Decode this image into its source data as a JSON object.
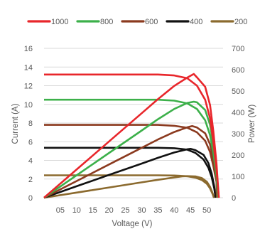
{
  "chart_data": {
    "type": "line",
    "title": "",
    "xlabel": "Voltage (V)",
    "ylabel": "Current (A)",
    "y2label": "Power (W)",
    "xlim": [
      0,
      55
    ],
    "ylim": [
      0,
      16
    ],
    "y2lim": [
      0,
      700
    ],
    "xticks": [
      "05",
      "10",
      "15",
      "20",
      "25",
      "30",
      "35",
      "40",
      "45",
      "50"
    ],
    "yticks": [
      0,
      2,
      4,
      6,
      8,
      10,
      12,
      14,
      16
    ],
    "y2ticks": [
      0,
      100,
      200,
      300,
      400,
      500,
      600,
      700
    ],
    "grid": "horizontal",
    "legend_position": "top",
    "series": [
      {
        "name": "1000",
        "color": "#e8262b",
        "current": [
          [
            0,
            13.2
          ],
          [
            35,
            13.2
          ],
          [
            40,
            13.1
          ],
          [
            44,
            12.8
          ],
          [
            47,
            12.0
          ],
          [
            49.5,
            10.5
          ],
          [
            51,
            8.5
          ],
          [
            52,
            6.0
          ],
          [
            53,
            3.0
          ],
          [
            53.7,
            0
          ]
        ],
        "power": [
          [
            0,
            0
          ],
          [
            10,
            132
          ],
          [
            20,
            264
          ],
          [
            30,
            396
          ],
          [
            35,
            462
          ],
          [
            40,
            524
          ],
          [
            44,
            563
          ],
          [
            46,
            580
          ],
          [
            47,
            564
          ],
          [
            49.5,
            520
          ],
          [
            51,
            434
          ],
          [
            52,
            312
          ],
          [
            53,
            159
          ],
          [
            53.7,
            0
          ]
        ]
      },
      {
        "name": "800",
        "color": "#3cb04a",
        "current": [
          [
            0,
            10.5
          ],
          [
            35,
            10.5
          ],
          [
            40,
            10.4
          ],
          [
            44,
            10.1
          ],
          [
            47,
            9.5
          ],
          [
            49.5,
            8.3
          ],
          [
            51,
            6.7
          ],
          [
            52,
            4.8
          ],
          [
            53,
            2.3
          ],
          [
            53.4,
            0
          ]
        ],
        "power": [
          [
            0,
            0
          ],
          [
            10,
            105
          ],
          [
            20,
            210
          ],
          [
            30,
            315
          ],
          [
            35,
            368
          ],
          [
            40,
            416
          ],
          [
            44,
            444
          ],
          [
            46,
            450
          ],
          [
            47,
            447
          ],
          [
            49.5,
            411
          ],
          [
            51,
            342
          ],
          [
            52,
            250
          ],
          [
            53,
            122
          ],
          [
            53.4,
            0
          ]
        ]
      },
      {
        "name": "600",
        "color": "#8b3a1f",
        "current": [
          [
            0,
            7.8
          ],
          [
            35,
            7.8
          ],
          [
            40,
            7.7
          ],
          [
            44,
            7.5
          ],
          [
            47,
            7.0
          ],
          [
            49.5,
            6.1
          ],
          [
            51,
            4.9
          ],
          [
            52,
            3.4
          ],
          [
            53,
            1.7
          ],
          [
            53.1,
            0
          ]
        ],
        "power": [
          [
            0,
            0
          ],
          [
            10,
            78
          ],
          [
            20,
            156
          ],
          [
            30,
            234
          ],
          [
            35,
            273
          ],
          [
            40,
            308
          ],
          [
            44,
            330
          ],
          [
            45.5,
            336
          ],
          [
            47,
            329
          ],
          [
            49.5,
            302
          ],
          [
            51,
            250
          ],
          [
            52,
            177
          ],
          [
            53,
            90
          ],
          [
            53.1,
            0
          ]
        ]
      },
      {
        "name": "400",
        "color": "#111111",
        "current": [
          [
            0,
            5.35
          ],
          [
            35,
            5.35
          ],
          [
            40,
            5.3
          ],
          [
            44,
            5.15
          ],
          [
            46.5,
            4.8
          ],
          [
            49,
            4.1
          ],
          [
            50.5,
            3.2
          ],
          [
            51.5,
            2.2
          ],
          [
            52.3,
            1.0
          ],
          [
            52.7,
            0
          ]
        ],
        "power": [
          [
            0,
            0
          ],
          [
            10,
            53.5
          ],
          [
            20,
            107
          ],
          [
            30,
            160
          ],
          [
            35,
            187
          ],
          [
            40,
            212
          ],
          [
            44,
            227
          ],
          [
            45,
            229
          ],
          [
            46.5,
            223
          ],
          [
            49,
            201
          ],
          [
            50.5,
            162
          ],
          [
            51.5,
            113
          ],
          [
            52.3,
            52
          ],
          [
            52.7,
            0
          ]
        ]
      },
      {
        "name": "200",
        "color": "#8b6a2e",
        "current": [
          [
            0,
            2.4
          ],
          [
            35,
            2.4
          ],
          [
            40,
            2.38
          ],
          [
            44,
            2.3
          ],
          [
            46.5,
            2.15
          ],
          [
            48.5,
            1.9
          ],
          [
            50,
            1.5
          ],
          [
            51,
            1.0
          ],
          [
            51.8,
            0.4
          ],
          [
            52.2,
            0
          ]
        ],
        "power": [
          [
            0,
            0
          ],
          [
            10,
            24
          ],
          [
            20,
            48
          ],
          [
            30,
            72
          ],
          [
            35,
            84
          ],
          [
            40,
            95
          ],
          [
            42.5,
            100
          ],
          [
            44,
            101
          ],
          [
            46.5,
            100
          ],
          [
            48.5,
            92
          ],
          [
            50,
            75
          ],
          [
            51,
            51
          ],
          [
            51.8,
            21
          ],
          [
            52.2,
            0
          ]
        ]
      }
    ]
  }
}
